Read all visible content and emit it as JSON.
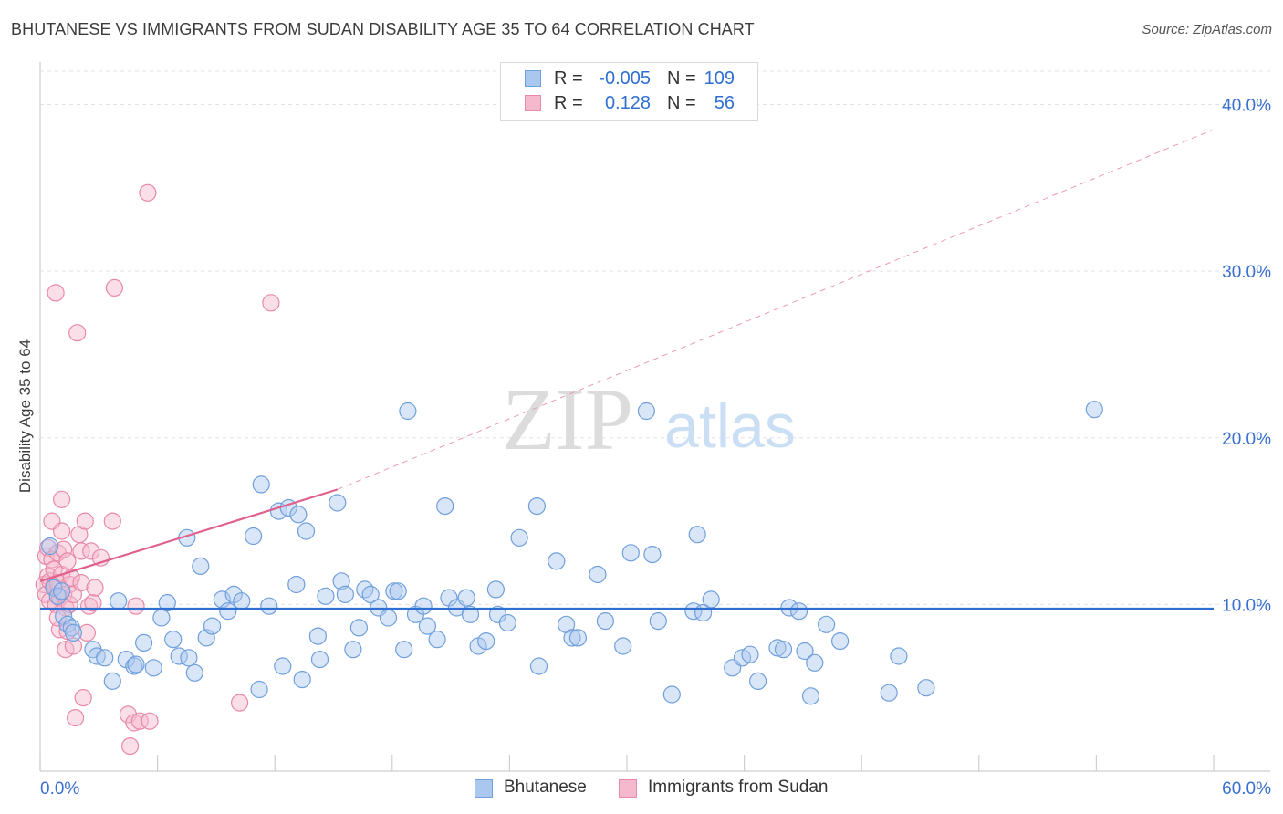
{
  "header": {
    "title": "BHUTANESE VS IMMIGRANTS FROM SUDAN DISABILITY AGE 35 TO 64 CORRELATION CHART",
    "source": "Source: ZipAtlas.com"
  },
  "watermark": {
    "zip": "ZIP",
    "atlas": "atlas"
  },
  "stats": {
    "rows": [
      {
        "r_label": "R =",
        "r_value": "-0.005",
        "n_label": "N =",
        "n_value": "109",
        "color": "#aac7ef"
      },
      {
        "r_label": "R =",
        "r_value": "0.128",
        "n_label": "N =",
        "n_value": "56",
        "color": "#f6b8cc"
      }
    ]
  },
  "legend": {
    "items": [
      {
        "label": "Bhutanese",
        "color": "#aac7ef"
      },
      {
        "label": "Immigrants from Sudan",
        "color": "#f6b8cc"
      }
    ]
  },
  "colors": {
    "blue_fill": "#aac7ef",
    "blue_edge": "#6f9fdc",
    "blue_line": "#2f6fd1",
    "pink_fill": "#f6b8cc",
    "pink_edge": "#e889a8",
    "pink_line": "#e0628c",
    "tick_text": "#3a6fd0",
    "grid": "#e3e3e3"
  },
  "chart_data": {
    "type": "scatter",
    "title": "BHUTANESE VS IMMIGRANTS FROM SUDAN DISABILITY AGE 35 TO 64 CORRELATION CHART",
    "xlabel": "",
    "ylabel": "Disability Age 35 to 64",
    "xlim": [
      0,
      60
    ],
    "ylim": [
      0,
      42
    ],
    "x_tick_labels": [
      "0.0%",
      "60.0%"
    ],
    "y_ticks": [
      10,
      20,
      30,
      40
    ],
    "y_tick_labels": [
      "10.0%",
      "20.0%",
      "30.0%",
      "40.0%"
    ],
    "grid": true,
    "legend_position": "bottom",
    "series": [
      {
        "name": "Bhutanese",
        "r": -0.005,
        "n": 109,
        "trend": {
          "x": [
            0,
            60
          ],
          "y": [
            9.75,
            9.75
          ],
          "style": "solid"
        },
        "points": [
          [
            0.5,
            13.5
          ],
          [
            0.7,
            11.0
          ],
          [
            0.9,
            10.5
          ],
          [
            1.1,
            10.8
          ],
          [
            1.2,
            9.3
          ],
          [
            1.4,
            8.8
          ],
          [
            1.6,
            8.6
          ],
          [
            1.7,
            8.3
          ],
          [
            2.7,
            7.3
          ],
          [
            2.9,
            6.9
          ],
          [
            3.3,
            6.8
          ],
          [
            3.7,
            5.4
          ],
          [
            4.0,
            10.2
          ],
          [
            4.4,
            6.7
          ],
          [
            4.8,
            6.3
          ],
          [
            4.9,
            6.4
          ],
          [
            5.3,
            7.7
          ],
          [
            5.8,
            6.2
          ],
          [
            6.2,
            9.2
          ],
          [
            6.5,
            10.1
          ],
          [
            6.8,
            7.9
          ],
          [
            7.1,
            6.9
          ],
          [
            7.5,
            14.0
          ],
          [
            7.6,
            6.8
          ],
          [
            7.9,
            5.9
          ],
          [
            8.2,
            12.3
          ],
          [
            8.5,
            8.0
          ],
          [
            8.8,
            8.7
          ],
          [
            9.3,
            10.3
          ],
          [
            9.6,
            9.6
          ],
          [
            9.9,
            10.6
          ],
          [
            10.3,
            10.2
          ],
          [
            10.9,
            14.1
          ],
          [
            11.2,
            4.9
          ],
          [
            11.3,
            17.2
          ],
          [
            11.7,
            9.9
          ],
          [
            12.2,
            15.6
          ],
          [
            12.4,
            6.3
          ],
          [
            12.7,
            15.8
          ],
          [
            13.1,
            11.2
          ],
          [
            13.4,
            5.5
          ],
          [
            13.2,
            15.4
          ],
          [
            13.6,
            14.4
          ],
          [
            14.2,
            8.1
          ],
          [
            14.3,
            6.7
          ],
          [
            14.6,
            10.5
          ],
          [
            15.2,
            16.1
          ],
          [
            15.4,
            11.4
          ],
          [
            15.6,
            10.6
          ],
          [
            16.0,
            7.3
          ],
          [
            16.3,
            8.6
          ],
          [
            16.6,
            10.9
          ],
          [
            16.9,
            10.6
          ],
          [
            17.3,
            9.8
          ],
          [
            17.8,
            9.2
          ],
          [
            18.1,
            10.8
          ],
          [
            18.3,
            10.8
          ],
          [
            18.6,
            7.3
          ],
          [
            18.8,
            21.6
          ],
          [
            19.2,
            9.4
          ],
          [
            19.6,
            9.9
          ],
          [
            19.8,
            8.7
          ],
          [
            20.3,
            7.9
          ],
          [
            20.7,
            15.9
          ],
          [
            20.9,
            10.4
          ],
          [
            21.3,
            9.8
          ],
          [
            21.8,
            10.4
          ],
          [
            22.0,
            9.4
          ],
          [
            22.4,
            7.5
          ],
          [
            22.8,
            7.8
          ],
          [
            23.3,
            10.9
          ],
          [
            23.4,
            9.4
          ],
          [
            23.9,
            8.9
          ],
          [
            24.5,
            14.0
          ],
          [
            25.4,
            15.9
          ],
          [
            25.5,
            6.3
          ],
          [
            26.4,
            12.6
          ],
          [
            26.9,
            8.8
          ],
          [
            27.2,
            8.0
          ],
          [
            27.5,
            8.0
          ],
          [
            28.5,
            11.8
          ],
          [
            28.9,
            9.0
          ],
          [
            29.8,
            7.5
          ],
          [
            30.2,
            13.1
          ],
          [
            31.0,
            21.6
          ],
          [
            31.3,
            13.0
          ],
          [
            31.6,
            9.0
          ],
          [
            32.3,
            4.6
          ],
          [
            33.4,
            9.6
          ],
          [
            33.6,
            14.2
          ],
          [
            33.9,
            9.5
          ],
          [
            34.3,
            10.3
          ],
          [
            35.4,
            6.2
          ],
          [
            35.9,
            6.8
          ],
          [
            36.3,
            7.0
          ],
          [
            36.7,
            5.4
          ],
          [
            37.7,
            7.4
          ],
          [
            38.0,
            7.3
          ],
          [
            38.3,
            9.8
          ],
          [
            38.8,
            9.6
          ],
          [
            39.1,
            7.2
          ],
          [
            39.4,
            4.5
          ],
          [
            39.6,
            6.5
          ],
          [
            40.2,
            8.8
          ],
          [
            40.9,
            7.8
          ],
          [
            43.4,
            4.7
          ],
          [
            43.9,
            6.9
          ],
          [
            45.3,
            5.0
          ],
          [
            53.9,
            21.7
          ]
        ]
      },
      {
        "name": "Immigrants from Sudan",
        "r": 0.128,
        "n": 56,
        "trend": {
          "x": [
            0,
            15.2
          ],
          "y": [
            11.4,
            16.9
          ],
          "extended_to": [
            60,
            38.5
          ],
          "style": "solid then dashed"
        },
        "points": [
          [
            0.2,
            11.2
          ],
          [
            0.3,
            12.9
          ],
          [
            0.3,
            10.6
          ],
          [
            0.4,
            13.4
          ],
          [
            0.4,
            11.7
          ],
          [
            0.5,
            11.4
          ],
          [
            0.5,
            10.2
          ],
          [
            0.6,
            15.0
          ],
          [
            0.6,
            12.7
          ],
          [
            0.7,
            12.1
          ],
          [
            0.7,
            11.1
          ],
          [
            0.8,
            10.0
          ],
          [
            0.8,
            28.7
          ],
          [
            0.9,
            13.1
          ],
          [
            0.9,
            11.3
          ],
          [
            1.0,
            10.4
          ],
          [
            1.0,
            8.5
          ],
          [
            1.1,
            16.3
          ],
          [
            1.1,
            14.4
          ],
          [
            1.1,
            11.8
          ],
          [
            1.2,
            13.3
          ],
          [
            1.2,
            10.6
          ],
          [
            1.3,
            7.3
          ],
          [
            1.3,
            9.8
          ],
          [
            1.4,
            12.6
          ],
          [
            1.4,
            8.4
          ],
          [
            1.5,
            11.2
          ],
          [
            1.5,
            10.0
          ],
          [
            1.6,
            11.6
          ],
          [
            1.7,
            10.6
          ],
          [
            1.7,
            7.5
          ],
          [
            1.8,
            3.2
          ],
          [
            1.9,
            26.3
          ],
          [
            2.0,
            14.2
          ],
          [
            2.1,
            13.2
          ],
          [
            2.1,
            11.3
          ],
          [
            2.2,
            4.4
          ],
          [
            2.3,
            15.0
          ],
          [
            2.4,
            8.3
          ],
          [
            2.5,
            9.9
          ],
          [
            2.6,
            13.2
          ],
          [
            2.7,
            10.1
          ],
          [
            2.8,
            11.0
          ],
          [
            3.1,
            12.8
          ],
          [
            3.7,
            15.0
          ],
          [
            3.8,
            29.0
          ],
          [
            4.5,
            3.4
          ],
          [
            4.6,
            1.5
          ],
          [
            4.8,
            2.9
          ],
          [
            4.9,
            9.9
          ],
          [
            5.1,
            3.0
          ],
          [
            5.6,
            3.0
          ],
          [
            5.5,
            34.7
          ],
          [
            10.2,
            4.1
          ],
          [
            11.8,
            28.1
          ],
          [
            0.9,
            9.2
          ]
        ]
      }
    ]
  }
}
